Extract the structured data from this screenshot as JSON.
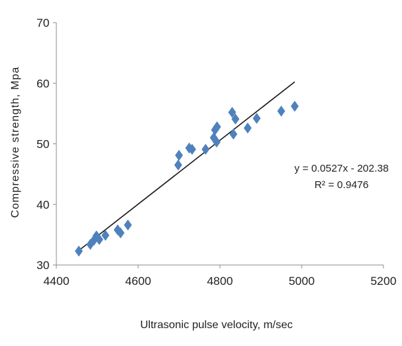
{
  "chart_data": {
    "type": "scatter",
    "xlabel": "Ultrasonic pulse velocity, m/sec",
    "ylabel": "Compressive strength, Mpa",
    "xlim": [
      4400,
      5200
    ],
    "ylim": [
      30,
      70
    ],
    "x_ticks": [
      4400,
      4600,
      4800,
      5000,
      5200
    ],
    "y_ticks": [
      30,
      40,
      50,
      60,
      70
    ],
    "grid": false,
    "legend": "none",
    "marker_color": "#4F81BD",
    "trendline_color": "#1a1a1a",
    "series": [
      {
        "marker": "diamond",
        "points": [
          [
            4455,
            32.3
          ],
          [
            4483,
            33.4
          ],
          [
            4492,
            34.1
          ],
          [
            4498,
            34.8
          ],
          [
            4505,
            34.2
          ],
          [
            4520,
            34.9
          ],
          [
            4550,
            35.8
          ],
          [
            4557,
            35.3
          ],
          [
            4575,
            36.6
          ],
          [
            4698,
            46.5
          ],
          [
            4700,
            48.1
          ],
          [
            4725,
            49.3
          ],
          [
            4732,
            49.1
          ],
          [
            4765,
            49.1
          ],
          [
            4785,
            51.0
          ],
          [
            4788,
            52.3
          ],
          [
            4792,
            50.3
          ],
          [
            4793,
            52.8
          ],
          [
            4830,
            55.2
          ],
          [
            4833,
            51.6
          ],
          [
            4838,
            54.1
          ],
          [
            4868,
            52.6
          ],
          [
            4890,
            54.2
          ],
          [
            4950,
            55.4
          ],
          [
            4983,
            56.2
          ]
        ]
      }
    ],
    "trendline": {
      "slope": 0.0527,
      "intercept": -202.38,
      "x_range": [
        4455,
        4983
      ]
    },
    "annotations": {
      "equation": "y = 0.0527x - 202.38",
      "r_squared": "R² = 0.9476"
    }
  }
}
